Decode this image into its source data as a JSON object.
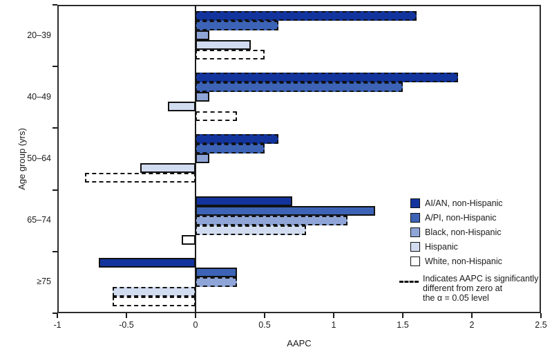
{
  "chart_data": {
    "type": "bar",
    "orientation": "horizontal",
    "title": "",
    "xlabel": "AAPC",
    "ylabel": "Age group (yrs)",
    "xlim": [
      -1,
      2.5
    ],
    "xticks": [
      {
        "value": -1,
        "label": "-1"
      },
      {
        "value": -0.5,
        "label": "-0.5"
      },
      {
        "value": 0,
        "label": "0"
      },
      {
        "value": 0.5,
        "label": "0.5"
      },
      {
        "value": 1,
        "label": "1"
      },
      {
        "value": 1.5,
        "label": "1.5"
      },
      {
        "value": 2,
        "label": "2"
      },
      {
        "value": 2.5,
        "label": "2.5"
      }
    ],
    "categories": [
      "20–39",
      "40–49",
      "50–64",
      "65–74",
      "≥75"
    ],
    "series": [
      {
        "name": "AI/AN, non-Hispanic",
        "color": "#12349c",
        "values": [
          1.6,
          1.9,
          0.6,
          0.7,
          -0.7
        ],
        "significant": [
          true,
          true,
          true,
          false,
          false
        ]
      },
      {
        "name": "A/PI, non-Hispanic",
        "color": "#3c63b6",
        "values": [
          0.6,
          1.5,
          0.5,
          1.3,
          0.3
        ],
        "significant": [
          true,
          true,
          true,
          false,
          false
        ]
      },
      {
        "name": "Black, non-Hispanic",
        "color": "#8fa5d8",
        "values": [
          0.1,
          0.1,
          0.1,
          1.1,
          0.3
        ],
        "significant": [
          false,
          false,
          false,
          true,
          true
        ]
      },
      {
        "name": "Hispanic",
        "color": "#d2dcf0",
        "values": [
          0.4,
          -0.2,
          -0.4,
          0.8,
          -0.6
        ],
        "significant": [
          false,
          false,
          false,
          true,
          true
        ]
      },
      {
        "name": "White, non-Hispanic",
        "color": "#ffffff",
        "values": [
          0.5,
          0.3,
          -0.8,
          -0.1,
          -0.6
        ],
        "significant": [
          true,
          true,
          true,
          false,
          true
        ]
      }
    ],
    "legend": {
      "note_lines": [
        "Indicates AAPC is significantly",
        "different from zero at",
        "the α = 0.05 level"
      ]
    },
    "grid": false,
    "legend_position": "inside-lower-right",
    "significance_style": "dashed-border",
    "axis_color": "#1a1a1a"
  }
}
